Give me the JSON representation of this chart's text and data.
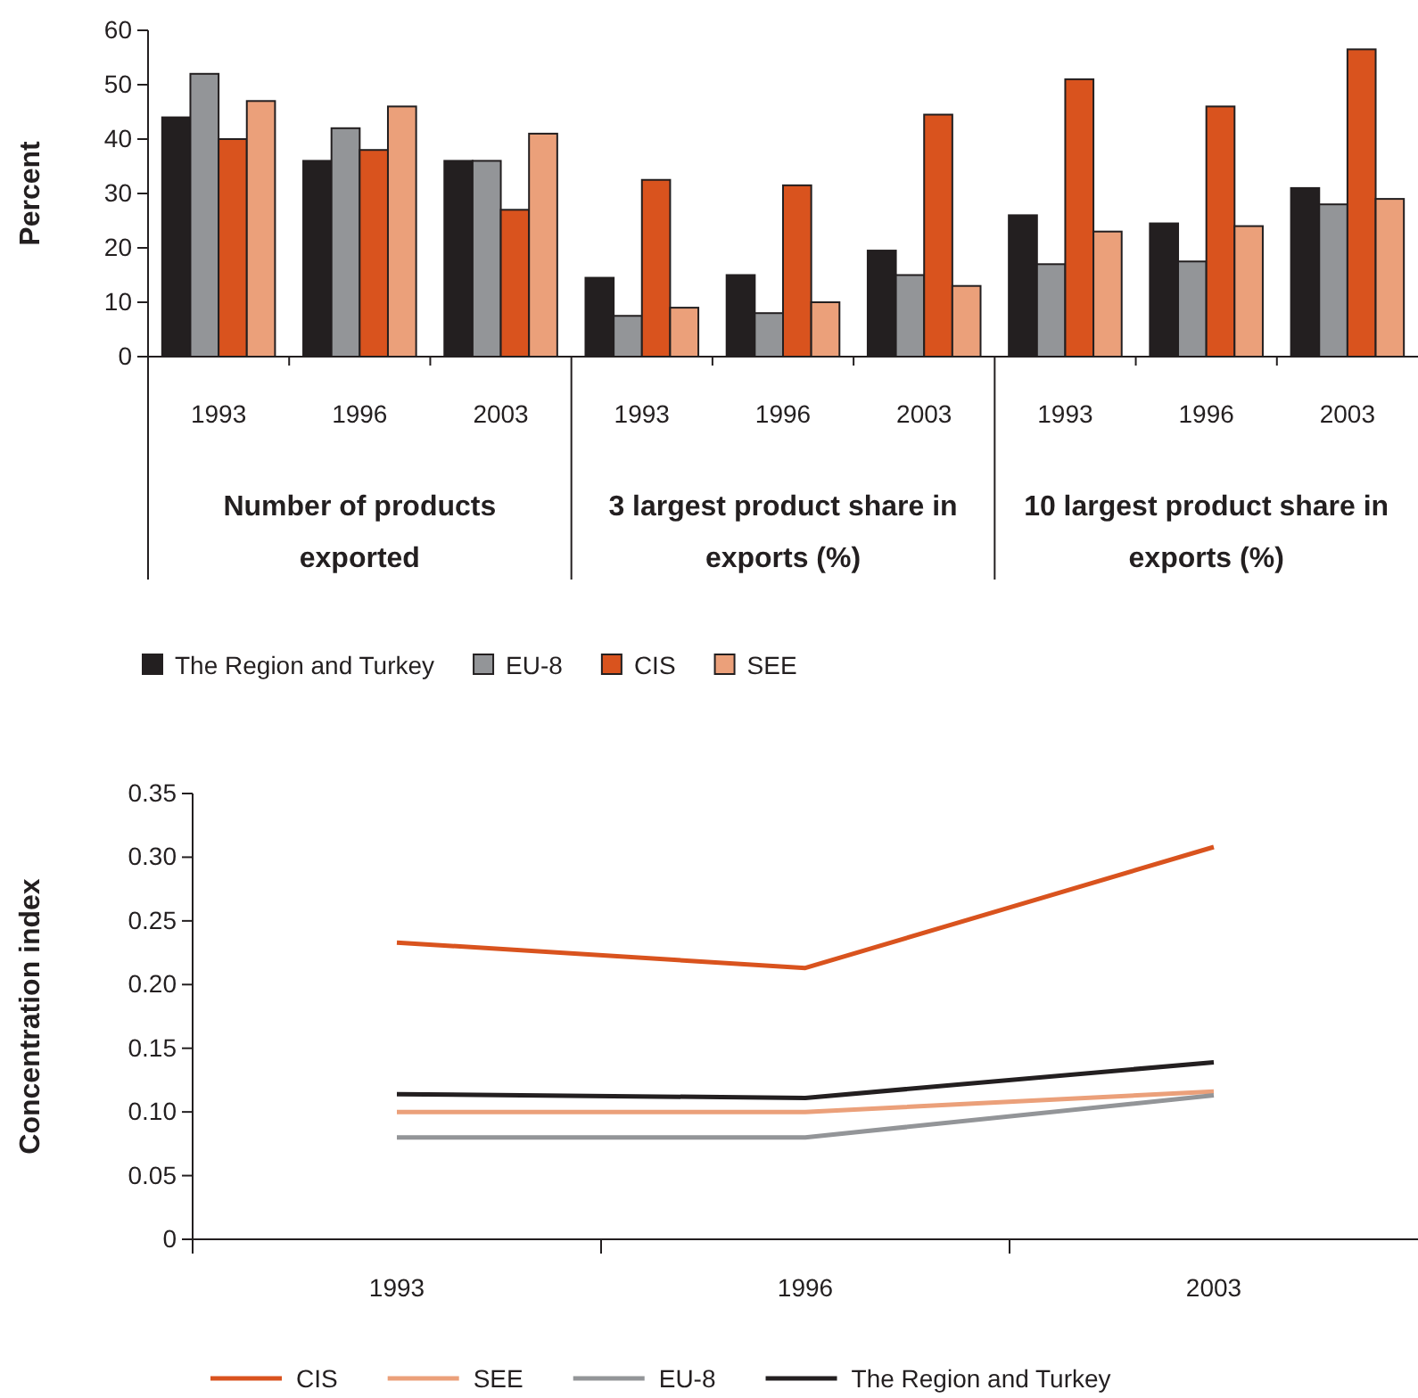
{
  "chart_data": [
    {
      "type": "bar",
      "ylabel": "Percent",
      "categories": [
        "1993",
        "1996",
        "2003",
        "1993",
        "1996",
        "2003",
        "1993",
        "1996",
        "2003"
      ],
      "series": [
        {
          "name": "The Region and Turkey",
          "color": "#231f20",
          "values": [
            44,
            36,
            36,
            14.5,
            15,
            19.5,
            26,
            24.5,
            31
          ]
        },
        {
          "name": "EU-8",
          "color": "#939598",
          "values": [
            52,
            42,
            36,
            7.5,
            8,
            15,
            17,
            17.5,
            28
          ]
        },
        {
          "name": "CIS",
          "color": "#d9531e",
          "values": [
            40,
            38,
            27,
            32.5,
            31.5,
            44.5,
            51,
            46,
            56.5
          ]
        },
        {
          "name": "SEE",
          "color": "#eba07a",
          "values": [
            47,
            46,
            41,
            9,
            10,
            13,
            23,
            24,
            29
          ]
        }
      ],
      "ylim": [
        0,
        60
      ],
      "yticks": [
        0,
        10,
        20,
        30,
        40,
        50,
        60
      ],
      "grid": false,
      "legend": "bottom",
      "annotations": [
        "Number of products exported",
        "3 largest product share in exports (%)",
        "10 largest product share in exports (%)"
      ]
    },
    {
      "type": "line",
      "ylabel": "Concentration index",
      "categories": [
        "1993",
        "1996",
        "2003"
      ],
      "series": [
        {
          "name": "CIS",
          "color": "#d9531e",
          "values": [
            0.233,
            0.213,
            0.308
          ]
        },
        {
          "name": "SEE",
          "color": "#eba07a",
          "values": [
            0.1,
            0.1,
            0.116
          ]
        },
        {
          "name": "EU-8",
          "color": "#939598",
          "values": [
            0.08,
            0.08,
            0.113
          ]
        },
        {
          "name": "The Region and Turkey",
          "color": "#231f20",
          "values": [
            0.114,
            0.111,
            0.139
          ]
        }
      ],
      "ylim": [
        0,
        0.35
      ],
      "yticks": [
        {
          "value": 0,
          "label": "0"
        },
        {
          "value": 0.05,
          "label": "0.05"
        },
        {
          "value": 0.1,
          "label": "0.10"
        },
        {
          "value": 0.15,
          "label": "0.15"
        },
        {
          "value": 0.2,
          "label": "0.20"
        },
        {
          "value": 0.25,
          "label": "0.25"
        },
        {
          "value": 0.3,
          "label": "0.30"
        },
        {
          "value": 0.35,
          "label": "0.35"
        }
      ],
      "grid": false,
      "legend": "bottom",
      "marker": "none",
      "line_style": "solid"
    }
  ]
}
